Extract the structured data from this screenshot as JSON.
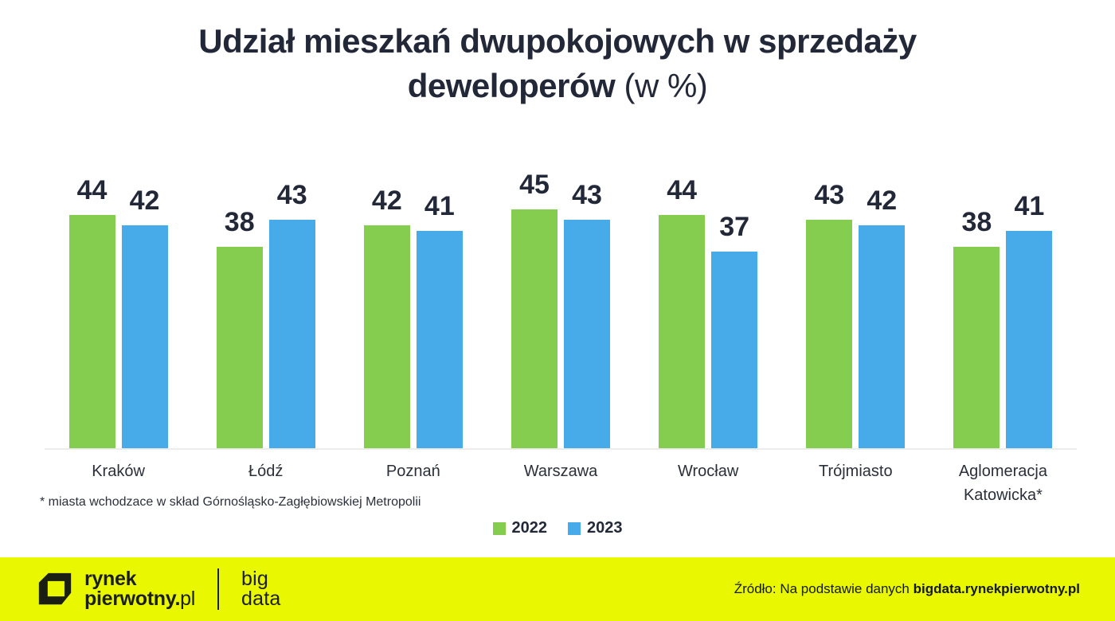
{
  "title": {
    "line1": "Udział mieszkań dwupokojowych w sprzedaży",
    "line2_bold": "deweloperów",
    "line2_light": "(w %)"
  },
  "chart_data": {
    "type": "bar",
    "title": "Udział mieszkań dwupokojowych w sprzedaży deweloperów (w %)",
    "categories": [
      "Kraków",
      "Łódź",
      "Poznań",
      "Warszawa",
      "Wrocław",
      "Trójmiasto",
      "Aglomeracja Katowicka*"
    ],
    "series": [
      {
        "name": "2022",
        "color": "#85CD4F",
        "values": [
          44,
          38,
          42,
          45,
          44,
          43,
          38
        ]
      },
      {
        "name": "2023",
        "color": "#47AAE9",
        "values": [
          42,
          43,
          41,
          43,
          37,
          42,
          41
        ]
      }
    ],
    "ylim": [
      0,
      45
    ],
    "value_labels": true,
    "grid": false,
    "legend_position": "bottom"
  },
  "footnote": "* miasta wchodzace w skład Górnośląsko-Zagłębiowskiej Metropolii",
  "footer": {
    "logo_line1": "rynek",
    "logo_line2_bold": "pierwotny.",
    "logo_line2_light": "pl",
    "bigdata_line1": "big",
    "bigdata_line2": "data",
    "source_prefix": "Źródło: Na podstawie danych ",
    "source_bold": "bigdata.rynekpierwotny.pl"
  },
  "colors": {
    "accent_green": "#85CD4F",
    "accent_blue": "#47AAE9",
    "footer_background": "#E9F800",
    "text_dark": "#232838",
    "axis_line": "#ECECEC"
  }
}
